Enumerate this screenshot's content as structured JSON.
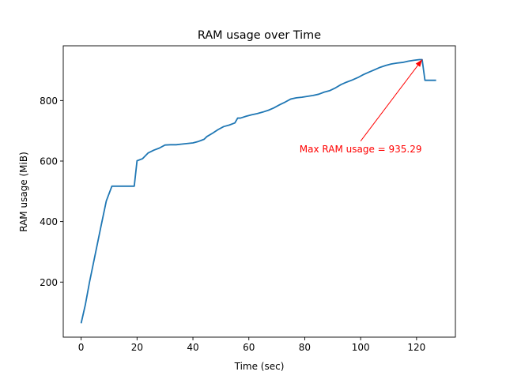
{
  "chart_data": {
    "type": "line",
    "title": "RAM usage over Time",
    "xlabel": "Time (sec)",
    "ylabel": "RAM usage (MiB)",
    "xlim": [
      -6.4,
      133.9
    ],
    "ylim": [
      18,
      981
    ],
    "xticks": [
      0,
      20,
      40,
      60,
      80,
      100,
      120
    ],
    "yticks": [
      200,
      400,
      600,
      800
    ],
    "grid": false,
    "series": [
      {
        "color": "#1f77b4",
        "x": [
          0,
          1.5,
          3,
          5,
          7,
          9,
          11,
          13,
          15,
          17,
          19,
          20,
          22,
          24,
          26,
          28,
          30,
          32,
          34,
          36,
          38,
          40,
          42,
          44,
          45,
          47,
          49,
          51,
          53,
          55,
          56,
          57,
          59,
          61,
          63,
          65,
          67,
          69,
          71,
          73,
          75,
          77,
          79,
          81,
          83,
          85,
          87,
          89,
          91,
          93,
          95,
          97,
          99,
          101,
          103,
          105,
          107,
          109,
          111,
          113,
          115,
          117,
          119,
          121,
          122,
          123,
          125,
          127
        ],
        "y": [
          64,
          125,
          200,
          290,
          380,
          468,
          517,
          517,
          517,
          517,
          517,
          601,
          608,
          627,
          636,
          643,
          653,
          654,
          654,
          656,
          658,
          660,
          665,
          672,
          681,
          692,
          704,
          714,
          719,
          726,
          742,
          742,
          748,
          753,
          757,
          762,
          768,
          776,
          786,
          795,
          805,
          809,
          811,
          814,
          817,
          821,
          828,
          833,
          842,
          853,
          861,
          868,
          876,
          886,
          894,
          902,
          910,
          916,
          921,
          924,
          926,
          930,
          933,
          935.29,
          935.29,
          867,
          867,
          867
        ]
      }
    ],
    "annotation": {
      "text": "Max RAM usage = 935.29",
      "color": "#ff0000",
      "point": [
        122,
        935.29
      ],
      "text_pos": [
        100,
        640
      ]
    }
  }
}
